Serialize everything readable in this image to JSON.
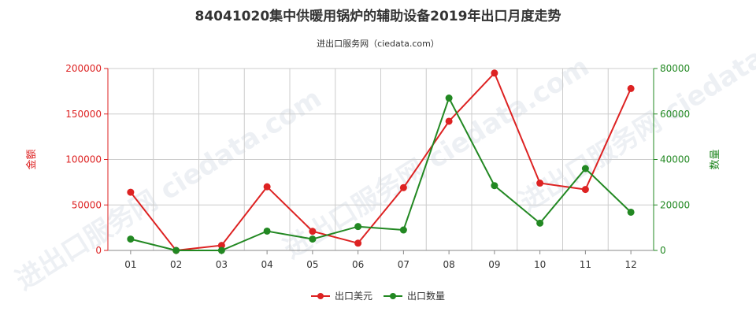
{
  "chart_data": {
    "type": "line",
    "title": "84041020集中供暖用锅炉的辅助设备2019年出口月度走势",
    "subtitle": "进出口服务网（ciedata.com）",
    "watermark": "进出口服务网 ciedata.com",
    "categories": [
      "01",
      "02",
      "03",
      "04",
      "05",
      "06",
      "07",
      "08",
      "09",
      "10",
      "11",
      "12"
    ],
    "y_left": {
      "label": "金额",
      "range": [
        0,
        200000
      ],
      "ticks": [
        "0",
        "50000",
        "100000",
        "150000",
        "200000"
      ],
      "color": "#dd2222"
    },
    "y_right": {
      "label": "数量",
      "range": [
        0,
        80000
      ],
      "ticks": [
        "0",
        "20000",
        "40000",
        "60000",
        "80000"
      ],
      "color": "#228822"
    },
    "series": [
      {
        "name": "出口美元",
        "axis": "left",
        "color": "#dd2222",
        "values": [
          64000,
          0,
          5500,
          70000,
          21000,
          8000,
          69000,
          142000,
          195000,
          74000,
          67000,
          178000
        ]
      },
      {
        "name": "出口数量",
        "axis": "right",
        "color": "#228822",
        "values": [
          5000,
          0,
          0,
          8500,
          5000,
          10500,
          9000,
          67000,
          28500,
          12000,
          36000,
          16800
        ]
      }
    ],
    "grid": true,
    "legend": "bottom-center"
  }
}
